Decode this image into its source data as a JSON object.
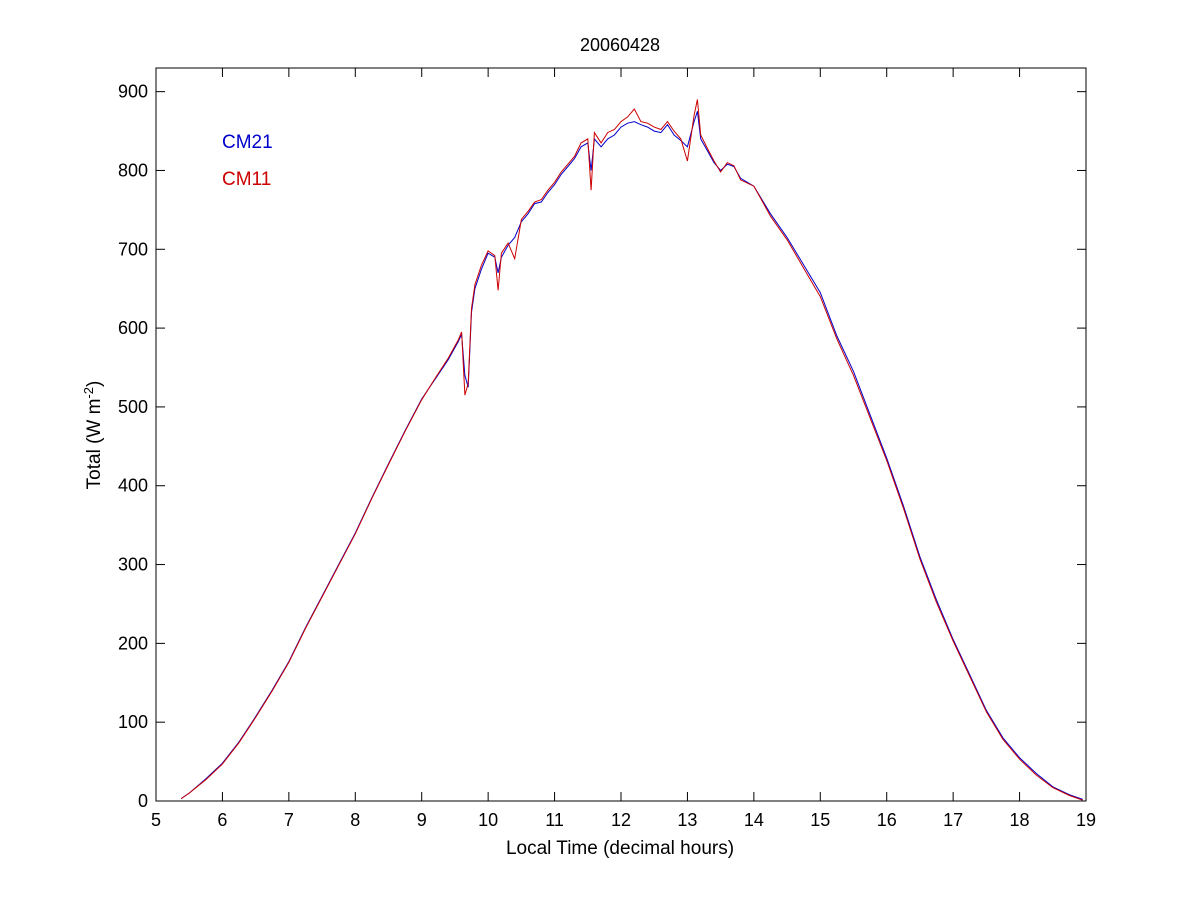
{
  "chart_data": {
    "type": "line",
    "title": "20060428",
    "xlabel": "Local Time (decimal hours)",
    "ylabel_main": "Total (W m",
    "ylabel_exponent": "-2",
    "ylabel_close": ")",
    "xlim": [
      5,
      19
    ],
    "ylim": [
      0,
      930
    ],
    "xticks": [
      5,
      6,
      7,
      8,
      9,
      10,
      11,
      12,
      13,
      14,
      15,
      16,
      17,
      18,
      19
    ],
    "yticks": [
      0,
      100,
      200,
      300,
      400,
      500,
      600,
      700,
      800,
      900
    ],
    "grid": false,
    "legend_position": "top-left",
    "series": [
      {
        "name": "CM21",
        "color": "#0000cc",
        "x": [
          5.38,
          5.5,
          5.75,
          6.0,
          6.25,
          6.5,
          6.75,
          7.0,
          7.25,
          7.5,
          7.75,
          8.0,
          8.25,
          8.5,
          8.75,
          9.0,
          9.2,
          9.4,
          9.55,
          9.6,
          9.65,
          9.7,
          9.75,
          9.8,
          9.9,
          10.0,
          10.1,
          10.15,
          10.2,
          10.3,
          10.4,
          10.5,
          10.6,
          10.7,
          10.8,
          10.9,
          11.0,
          11.1,
          11.2,
          11.3,
          11.4,
          11.5,
          11.55,
          11.6,
          11.7,
          11.8,
          11.9,
          12.0,
          12.1,
          12.2,
          12.3,
          12.4,
          12.5,
          12.6,
          12.7,
          12.8,
          12.9,
          13.0,
          13.1,
          13.15,
          13.2,
          13.3,
          13.4,
          13.5,
          13.6,
          13.7,
          13.8,
          14.0,
          14.25,
          14.5,
          14.75,
          15.0,
          15.25,
          15.5,
          15.75,
          16.0,
          16.25,
          16.5,
          16.75,
          17.0,
          17.25,
          17.5,
          17.75,
          18.0,
          18.25,
          18.5,
          18.75,
          18.95
        ],
        "values": [
          3,
          10,
          28,
          48,
          75,
          107,
          141,
          177,
          220,
          260,
          300,
          340,
          385,
          428,
          470,
          510,
          535,
          560,
          583,
          592,
          540,
          525,
          620,
          650,
          675,
          695,
          690,
          670,
          690,
          705,
          715,
          735,
          745,
          758,
          760,
          772,
          782,
          795,
          805,
          815,
          830,
          835,
          800,
          840,
          830,
          840,
          845,
          855,
          860,
          862,
          858,
          855,
          850,
          848,
          858,
          845,
          838,
          830,
          862,
          875,
          840,
          825,
          810,
          800,
          808,
          805,
          790,
          780,
          745,
          715,
          680,
          645,
          590,
          545,
          490,
          435,
          375,
          310,
          255,
          205,
          160,
          115,
          80,
          55,
          35,
          18,
          8,
          2
        ]
      },
      {
        "name": "CM11",
        "color": "#cc0000",
        "x": [
          5.38,
          5.5,
          5.75,
          6.0,
          6.25,
          6.5,
          6.75,
          7.0,
          7.25,
          7.5,
          7.75,
          8.0,
          8.25,
          8.5,
          8.75,
          9.0,
          9.2,
          9.4,
          9.55,
          9.6,
          9.65,
          9.7,
          9.75,
          9.8,
          9.9,
          10.0,
          10.1,
          10.15,
          10.2,
          10.3,
          10.4,
          10.5,
          10.6,
          10.7,
          10.8,
          10.9,
          11.0,
          11.1,
          11.2,
          11.3,
          11.4,
          11.5,
          11.55,
          11.6,
          11.7,
          11.8,
          11.9,
          12.0,
          12.1,
          12.2,
          12.3,
          12.4,
          12.5,
          12.6,
          12.7,
          12.8,
          12.9,
          13.0,
          13.1,
          13.15,
          13.2,
          13.3,
          13.4,
          13.5,
          13.6,
          13.7,
          13.8,
          14.0,
          14.25,
          14.5,
          14.75,
          15.0,
          15.25,
          15.5,
          15.75,
          16.0,
          16.25,
          16.5,
          16.75,
          17.0,
          17.25,
          17.5,
          17.75,
          18.0,
          18.25,
          18.5,
          18.75,
          18.95
        ],
        "values": [
          3,
          10,
          27,
          47,
          74,
          106,
          140,
          176,
          219,
          259,
          299,
          339,
          384,
          427,
          469,
          509,
          536,
          562,
          585,
          595,
          515,
          530,
          625,
          655,
          680,
          698,
          692,
          648,
          695,
          708,
          688,
          738,
          748,
          760,
          763,
          775,
          785,
          798,
          808,
          818,
          835,
          840,
          775,
          848,
          835,
          848,
          852,
          862,
          868,
          878,
          862,
          860,
          855,
          852,
          862,
          850,
          840,
          812,
          870,
          890,
          845,
          828,
          812,
          798,
          810,
          806,
          788,
          780,
          742,
          712,
          676,
          640,
          586,
          540,
          486,
          432,
          372,
          307,
          252,
          203,
          158,
          113,
          78,
          53,
          33,
          17,
          7,
          1
        ]
      }
    ]
  }
}
